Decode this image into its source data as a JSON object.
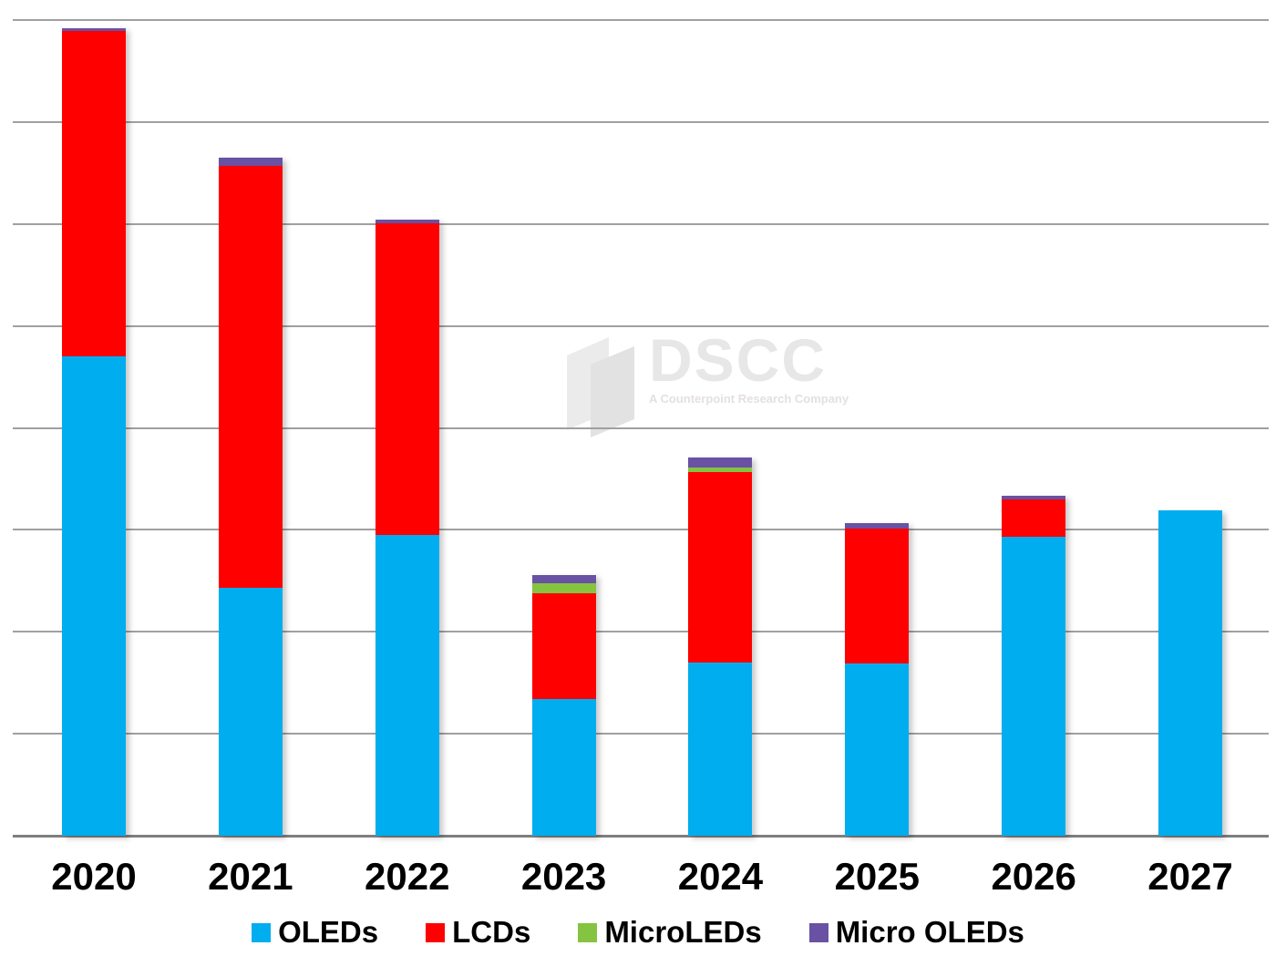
{
  "watermark": {
    "title": "DSCC",
    "subtitle": "A Counterpoint Research Company",
    "logo_color_light": "#ebebeb",
    "logo_color_dark": "#e2e2e2"
  },
  "axis": {
    "gridline_color": "#a0a0a0",
    "axis_color": "#7f7f7f"
  },
  "chart_data": {
    "type": "bar",
    "stacked": true,
    "title": "",
    "xlabel": "",
    "ylabel": "",
    "categories": [
      "2020",
      "2021",
      "2022",
      "2023",
      "2024",
      "2025",
      "2026",
      "2027"
    ],
    "series": [
      {
        "name": "OLEDs",
        "color": "#00ADEE",
        "values": [
          47.0,
          24.3,
          29.5,
          13.4,
          17.0,
          16.9,
          29.3,
          31.9
        ]
      },
      {
        "name": "LCDs",
        "color": "#FE0000",
        "values": [
          31.9,
          41.4,
          30.6,
          10.4,
          18.7,
          13.2,
          3.7,
          0
        ]
      },
      {
        "name": "MicroLEDs",
        "color": "#84C441",
        "values": [
          0,
          0,
          0,
          1.0,
          0.4,
          0,
          0,
          0
        ]
      },
      {
        "name": "Micro OLEDs",
        "color": "#6952A3",
        "values": [
          0.3,
          0.8,
          0.3,
          0.8,
          1.0,
          0.6,
          0.3,
          0
        ]
      }
    ],
    "ylim": [
      0,
      80
    ],
    "gridline_spacing": 10,
    "y_axis_labels_visible": false,
    "grid": true,
    "legend_position": "bottom"
  }
}
